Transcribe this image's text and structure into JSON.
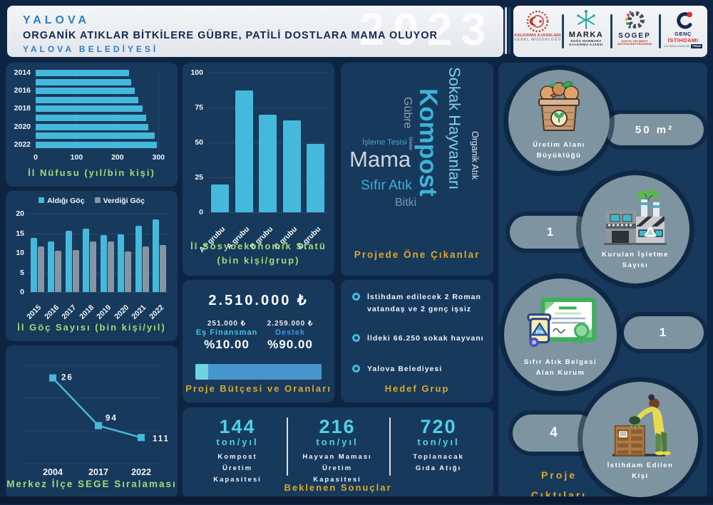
{
  "header": {
    "city": "YALOVA",
    "title": "ORGANİK ATIKLAR BİTKİLERE GÜBRE, PATİLİ DOSTLARA MAMA OLUYOR",
    "subtitle": "YALOVA BELEDİYESİ",
    "year_watermark": "2023"
  },
  "logos": [
    {
      "name": "kalkinma-ajanslari",
      "lines": [
        "KALKINMA AJANSLARI",
        "GENEL MÜDÜRLÜĞÜ"
      ]
    },
    {
      "name": "marka",
      "lines": [
        "MARKA",
        "DOĞU MARMARA",
        "KALKINMA AJANSI"
      ]
    },
    {
      "name": "sogep",
      "lines": [
        "SOGEP",
        "SOSYAL GELİŞMEYİ",
        "DESTEKLEME PROGRAMI"
      ]
    },
    {
      "name": "genc-istihdami",
      "lines": [
        "GENÇ",
        "İSTİHDAMI",
        "KALKINMA AJANSLARI",
        "TEMASI"
      ]
    }
  ],
  "colors": {
    "background": "#0d2543",
    "panel": "#17395c",
    "accent_cyan": "#44b9dc",
    "bar_gray": "#8496a2",
    "title_green": "#9fdc74",
    "title_gold": "#dda829",
    "circle_gray": "#7e94a0",
    "budget_light": "#6fd3e3",
    "budget_blue": "#4795cc"
  },
  "chart_data": [
    {
      "id": "population",
      "type": "bar",
      "orientation": "horizontal",
      "title": "İl Nüfusu (yıl/bin kişi)",
      "categories": [
        "2014",
        "2015",
        "2016",
        "2017",
        "2018",
        "2019",
        "2020",
        "2021",
        "2022"
      ],
      "values": [
        228,
        234,
        242,
        251,
        262,
        270,
        276,
        291,
        296
      ],
      "xlim": [
        0,
        310
      ],
      "xticks": [
        0,
        100,
        200,
        300
      ],
      "ylabel_shown_every": 2,
      "grid": true
    },
    {
      "id": "migration",
      "type": "bar",
      "orientation": "vertical",
      "grouped": true,
      "title": "İl Göç Sayısı (bin kişi/yıl)",
      "categories": [
        "2015",
        "2016",
        "2017",
        "2018",
        "2019",
        "2020",
        "2021",
        "2022"
      ],
      "series": [
        {
          "name": "Aldığı Göç",
          "values": [
            13.9,
            12.9,
            15.7,
            16.2,
            14.5,
            14.7,
            17.0,
            18.5
          ]
        },
        {
          "name": "Verdiği Göç",
          "values": [
            11.6,
            10.5,
            10.8,
            13.0,
            12.9,
            10.3,
            11.7,
            12.0
          ]
        }
      ],
      "ylim": [
        0,
        20
      ],
      "yticks": [
        0,
        5,
        10,
        15,
        20
      ],
      "legend_position": "top"
    },
    {
      "id": "sege",
      "type": "line",
      "title": "Merkez İlçe SEGE Sıralaması",
      "categories": [
        "2004",
        "2017",
        "2022"
      ],
      "values": [
        26,
        94,
        111
      ],
      "marker": "square",
      "data_labels": true,
      "grid": true,
      "ylim": [
        0,
        130
      ]
    },
    {
      "id": "ses",
      "type": "bar",
      "orientation": "vertical",
      "title": "İl Sosyoekonomik Statü\n(bin kişi/grup)",
      "categories": [
        "A+ grubu",
        "A grubu",
        "B grubu",
        "C grubu",
        "D grubu"
      ],
      "values": [
        20,
        87,
        70,
        66,
        49
      ],
      "ylim": [
        0,
        100
      ],
      "yticks": [
        0,
        25,
        50,
        75,
        100
      ],
      "grid": true
    }
  ],
  "word_cloud": {
    "title": "Projede Öne Çıkanlar",
    "words": [
      {
        "text": "Kompost"
      },
      {
        "text": "Sokak Hayvanları"
      },
      {
        "text": "Organik Atık"
      },
      {
        "text": "Gübre"
      },
      {
        "text": "Üretim"
      },
      {
        "text": "İşleme Tesisi"
      },
      {
        "text": "Mama"
      },
      {
        "text": "Sıfır Atık"
      },
      {
        "text": "Bitki"
      }
    ]
  },
  "budget": {
    "title": "Proje Bütçesi ve Oranları",
    "total": "2.510.000 ₺",
    "co_finance": {
      "amount": "251.000 ₺",
      "label": "Eş Finansman",
      "percent_label": "%10.00",
      "percent": 10
    },
    "support": {
      "amount": "2.259.000 ₺",
      "label": "Destek",
      "percent_label": "%90.00",
      "percent": 90
    }
  },
  "target_group": {
    "title": "Hedef Grup",
    "items": [
      "İstihdam edilecek 2 Roman vatandaş ve 2 genç işsiz",
      "İldeki 66.250 sokak hayvanı",
      "Yalova Belediyesi"
    ]
  },
  "expected_results": {
    "title": "Beklenen Sonuçlar",
    "items": [
      {
        "value": "144",
        "unit": "ton/yıl",
        "label": "Kompost\nÜretim\nKapasitesi"
      },
      {
        "value": "216",
        "unit": "ton/yıl",
        "label": "Hayvan Maması\nÜretim\nKapasitesi"
      },
      {
        "value": "720",
        "unit": "ton/yıl",
        "label": "Toplanacak\nGıda Atığı"
      }
    ]
  },
  "outputs": {
    "title": "Proje\nÇıktıları",
    "items": [
      {
        "label": "Üretim Alanı\nBüyüklüğü",
        "value": "50 m²",
        "icon": "compost-box-icon"
      },
      {
        "label": "Kurulan İşletme\nSayısı",
        "value": "1",
        "icon": "factory-icon"
      },
      {
        "label": "Sıfır Atık Belgesi\nAlan Kurum",
        "value": "1",
        "icon": "certificate-icon"
      },
      {
        "label": "İstihdam Edilen\nKişi",
        "value": "4",
        "icon": "composting-person-icon"
      }
    ]
  }
}
